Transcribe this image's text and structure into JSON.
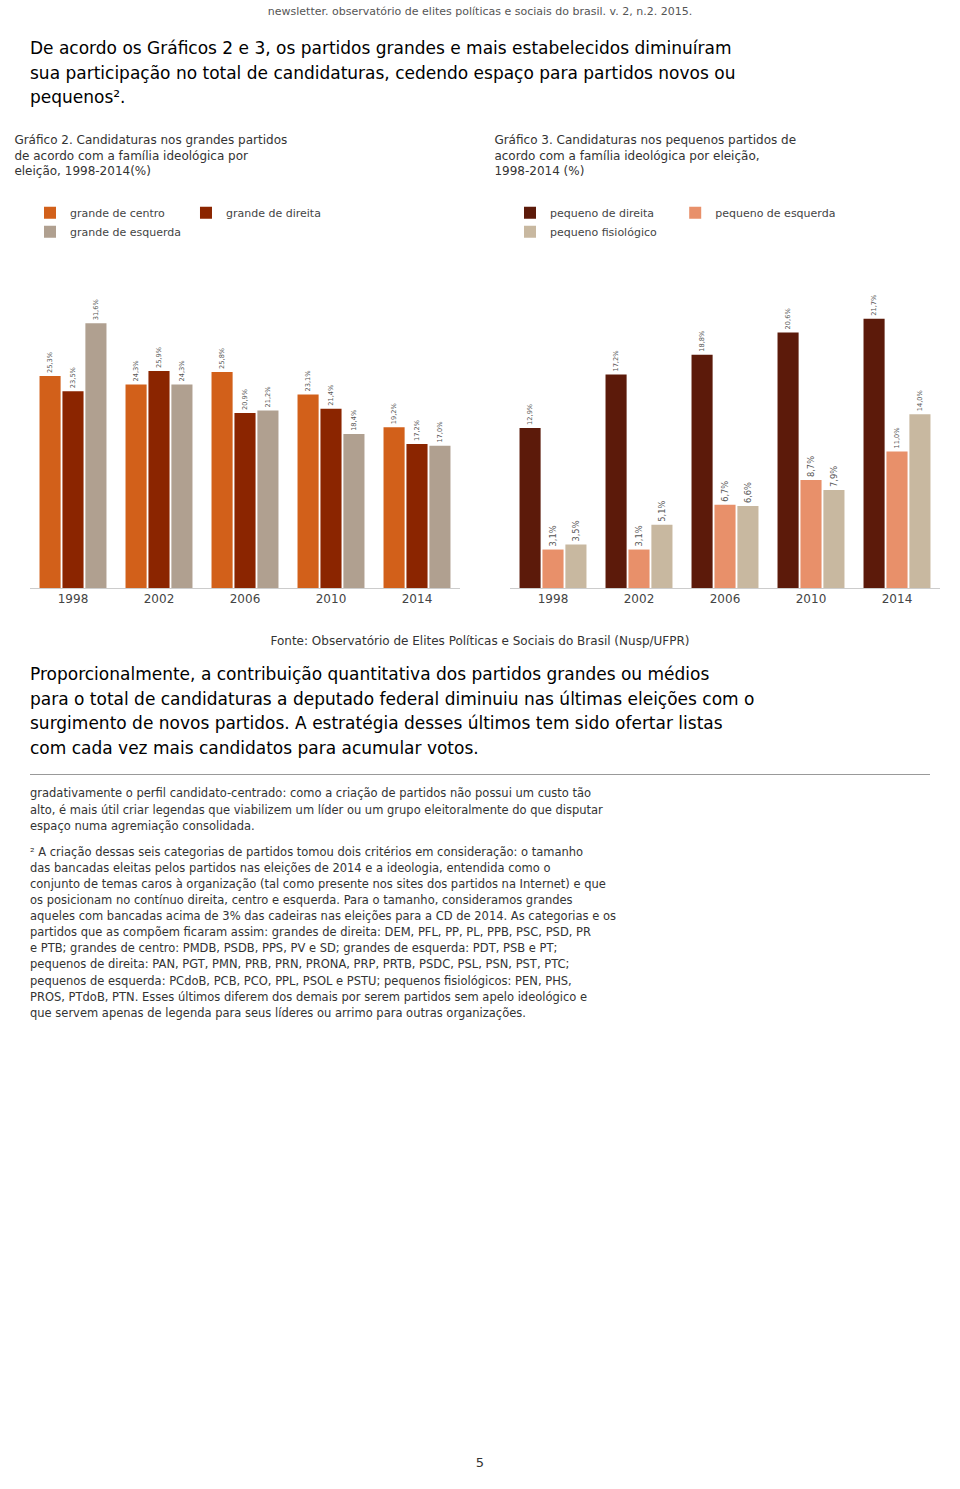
{
  "header": "newsletter. observatório de elites políticas e sociais do brasil. v. 2, n.2. 2015.",
  "paragraphs": [
    "De acordo os Gráficos 2 e 3, os partidos grandes e mais estabelecidos diminuíram\nsua participação no total de candidaturas, cedendo espaço para partidos novos ou\npequenos².",
    "Proporcionalmente, a contribuição quantitativa dos partidos grandes ou médios\npara o total de candidaturas a deputado federal diminuiu nas últimas eleições com o\nsurgimento de novos partidos. A estratégia desses últimos tem sido ofertar listas\ncom cada vez mais candidatos para acumular votos."
  ],
  "source": "Fonte: Observatório de Elites Políticas e Sociais do Brasil (Nusp/UFPR)",
  "footnotes": [
    "gradativamente o perfil candidato-centrado: como a criação de partidos não possui um custo tão\nalto, é mais útil criar legendas que viabilizem um líder ou um grupo eleitoralmente do que disputar\nespaço numa agremiação consolidada.",
    "² A criação dessas seis categorias de partidos tomou dois critérios em consideração: o tamanho\ndas bancadas eleitas pelos partidos nas eleições de 2014 e a ideologia, entendida como o\nconjunto de temas caros à organização (tal como presente nos sites dos partidos na Internet) e que\nos posicionam no contínuo direita, centro e esquerda. Para o tamanho, consideramos grandes\naqueles com bancadas acima de 3% das cadeiras nas eleições para a CD de 2014. As categorias e os\npartidos que as compõem ficaram assim: grandes de direita: DEM, PFL, PP, PL, PPB, PSC, PSD, PR\ne PTB; grandes de centro: PMDB, PSDB, PPS, PV e SD; grandes de esquerda: PDT, PSB e PT;\npequenos de direita: PAN, PGT, PMN, PRB, PRN, PRONA, PRP, PRTB, PSDC, PSL, PSN, PST, PTC;\npequenos de esquerda: PCdoB, PCB, PCO, PPL, PSOL e PSTU; pequenos fisiológicos: PEN, PHS,\nPROS, PTdoB, PTN. Esses últimos diferem dos demais por serem partidos sem apelo ideológico e\nque servem apenas de legenda para seus líderes ou arrimo para outras organizações."
  ],
  "page_number": "5",
  "chart_data": [
    {
      "type": "bar",
      "title": "Gráfico 2. Candidaturas nos grandes partidos\nde acordo com a família ideológica por\neleição, 1998-2014(%)",
      "categories": [
        "1998",
        "2002",
        "2006",
        "2010",
        "2014"
      ],
      "series": [
        {
          "name": "grande de centro",
          "color": "#d2601a",
          "values": [
            25.3,
            24.3,
            25.8,
            23.1,
            19.2
          ],
          "value_labels": [
            "25,3%",
            "24,3%",
            "25,8%",
            "23,1%",
            "19,2%"
          ]
        },
        {
          "name": "grande de direita",
          "color": "#8b2500",
          "values": [
            23.5,
            25.9,
            20.9,
            21.4,
            17.2
          ],
          "value_labels": [
            "23,5%",
            "25,9%",
            "20,9%",
            "21,4%",
            "17,2%"
          ]
        },
        {
          "name": "grande de esquerda",
          "color": "#b0a090",
          "values": [
            31.6,
            24.3,
            21.2,
            18.4,
            17.0
          ],
          "value_labels": [
            "31,6%",
            "24,3%",
            "21,2%",
            "18,4%",
            "17,0%"
          ]
        }
      ],
      "ylim": [
        0,
        40
      ],
      "tick_labels": "x",
      "data_labels": true,
      "grid": false,
      "legend": "top"
    },
    {
      "type": "bar",
      "title": "Gráfico 3. Candidaturas nos pequenos partidos de\nacordo com a família ideológica por eleição,\n1998-2014 (%)",
      "categories": [
        "1998",
        "2002",
        "2006",
        "2010",
        "2014"
      ],
      "series": [
        {
          "name": "pequeno de direita",
          "color": "#5c1a0a",
          "values": [
            12.9,
            17.2,
            18.8,
            20.6,
            21.7
          ],
          "value_labels": [
            "12,9%",
            "17,2%",
            "18,8%",
            "20,6%",
            "21,7%"
          ]
        },
        {
          "name": "pequeno de esquerda",
          "color": "#e8906a",
          "values": [
            3.1,
            3.1,
            6.7,
            8.7,
            11.0
          ],
          "value_labels": [
            "3,1%",
            "3,1%",
            "6,7%",
            "8,7%",
            "11,0%"
          ]
        },
        {
          "name": "pequeno fisiológico",
          "color": "#c8b8a0",
          "values": [
            3.5,
            5.1,
            6.6,
            7.9,
            14.0
          ],
          "value_labels": [
            "3,5%",
            "5,1%",
            "6,6%",
            "7,9%",
            "14,0%"
          ]
        }
      ],
      "ylim": [
        0,
        27
      ],
      "tick_labels": "x",
      "data_labels": true,
      "grid": false,
      "legend": "top"
    }
  ]
}
